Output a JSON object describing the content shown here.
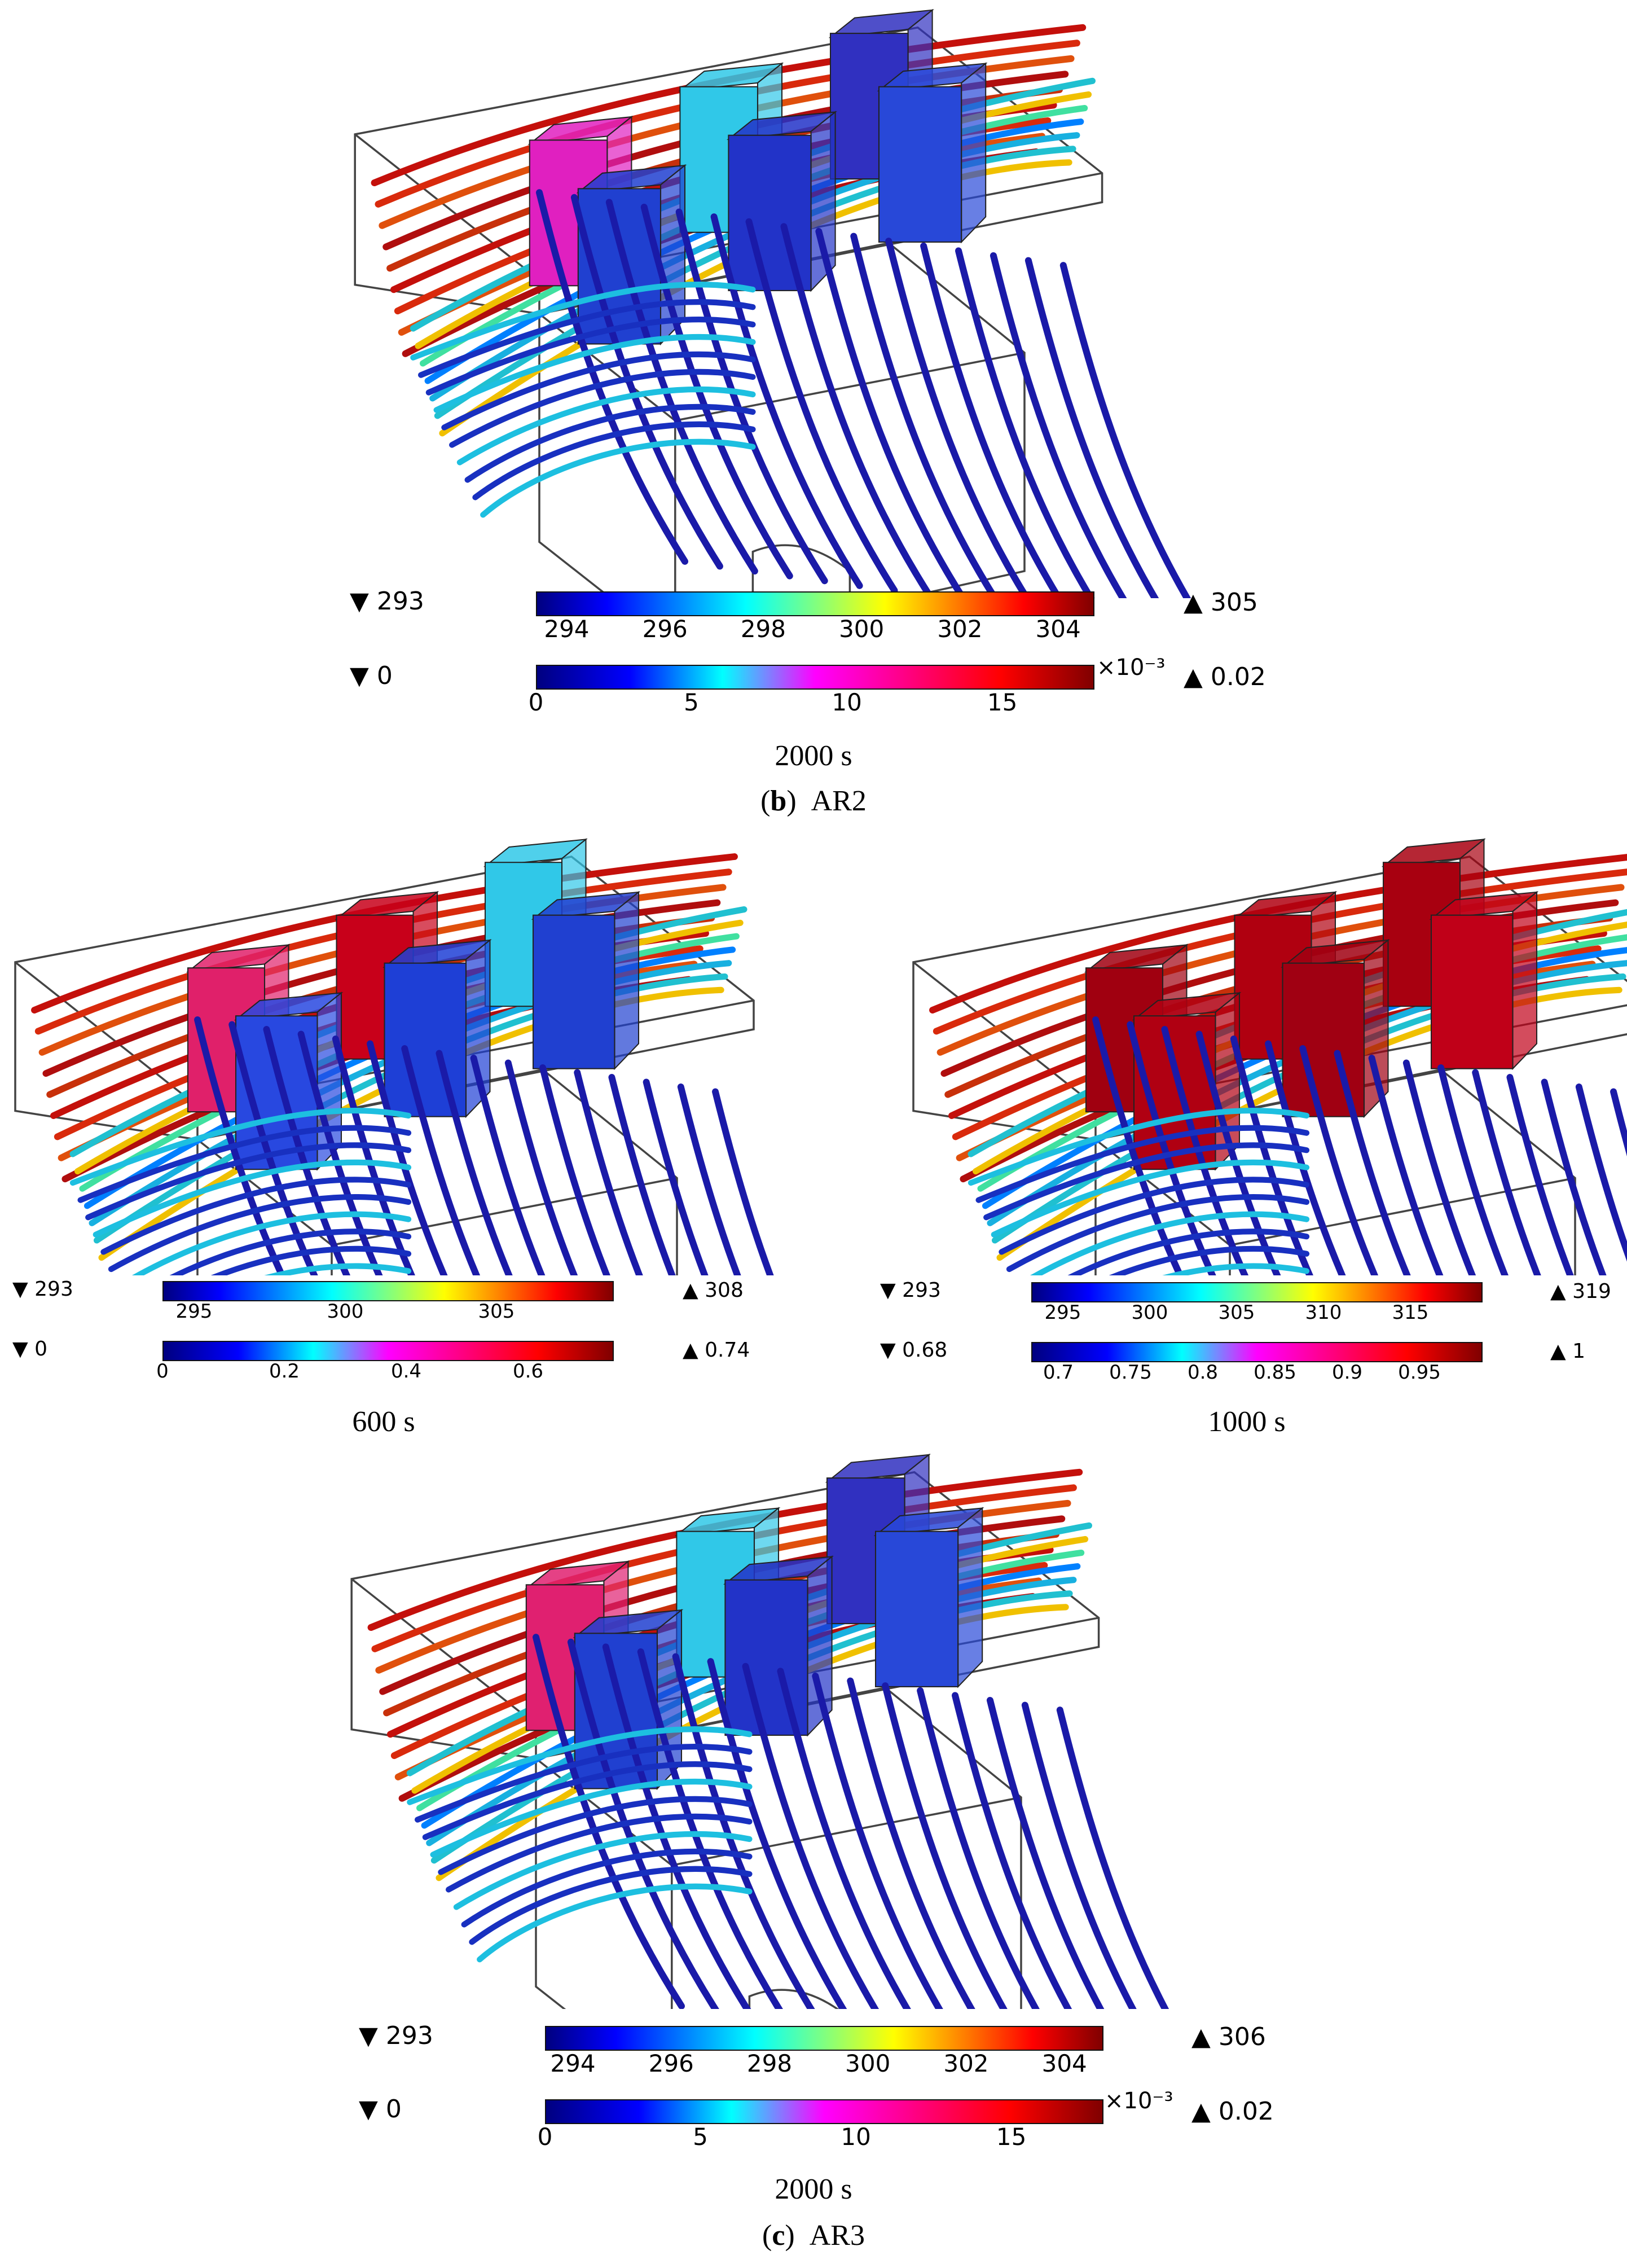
{
  "colors": {
    "temperature_scale": [
      "#000080",
      "#0000ff",
      "#0080ff",
      "#00ffff",
      "#80ff80",
      "#ffff00",
      "#ff8000",
      "#ff0000",
      "#800000"
    ],
    "concentration_scale": [
      "#000080",
      "#0000ff",
      "#00ffff",
      "#ff00ff",
      "#ff0080",
      "#ff0000",
      "#800000"
    ],
    "box_outline": "#444444",
    "module_blue": "#1e3fd6",
    "module_red": "#c0001a",
    "streamline_blue": "#1a1aa8"
  },
  "panels": {
    "ar2_2000": {
      "temp": {
        "min": "293",
        "max": "305",
        "ticks": [
          "294",
          "296",
          "298",
          "300",
          "302",
          "304"
        ]
      },
      "conc": {
        "min": "0",
        "max": "0.02",
        "ticks": [
          "0",
          "5",
          "10",
          "15"
        ],
        "multiplier": "×10⁻³"
      },
      "time": "2000 s"
    },
    "ar3_600": {
      "temp": {
        "min": "293",
        "max": "308",
        "ticks": [
          "295",
          "300",
          "305"
        ]
      },
      "conc": {
        "min": "0",
        "max": "0.74",
        "ticks": [
          "0",
          "0.2",
          "0.4",
          "0.6"
        ]
      },
      "time": "600 s"
    },
    "ar3_1000": {
      "temp": {
        "min": "293",
        "max": "319",
        "ticks": [
          "295",
          "300",
          "305",
          "310",
          "315"
        ]
      },
      "conc": {
        "min": "0.68",
        "max": "1",
        "ticks": [
          "0.7",
          "0.75",
          "0.8",
          "0.85",
          "0.9",
          "0.95"
        ]
      },
      "time": "1000 s"
    },
    "ar3_2000": {
      "temp": {
        "min": "293",
        "max": "306",
        "ticks": [
          "294",
          "296",
          "298",
          "300",
          "302",
          "304"
        ]
      },
      "conc": {
        "min": "0",
        "max": "0.02",
        "ticks": [
          "0",
          "5",
          "10",
          "15"
        ],
        "multiplier": "×10⁻³"
      },
      "time": "2000 s"
    }
  },
  "captions": {
    "b": {
      "letter": "b",
      "label": "AR2"
    },
    "c": {
      "letter": "c",
      "label": "AR3"
    }
  },
  "markers": {
    "min": "▼",
    "max": "▲"
  }
}
